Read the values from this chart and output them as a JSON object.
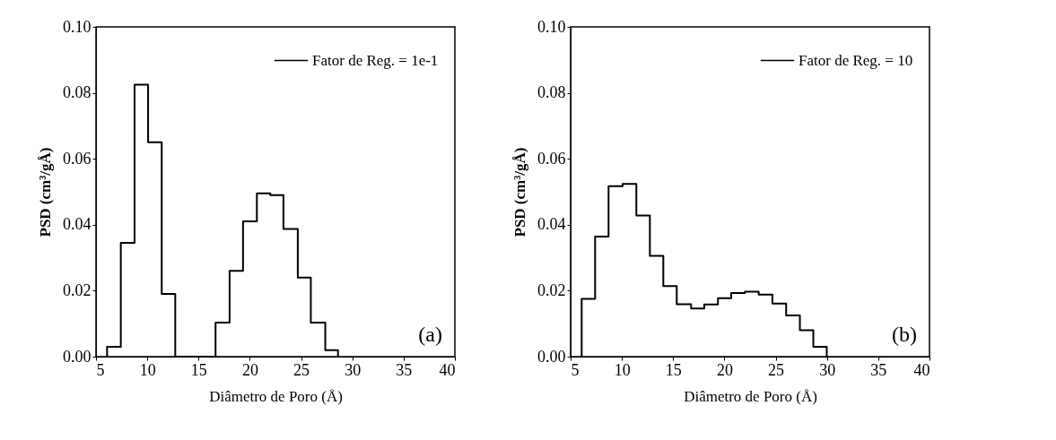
{
  "chart_data": [
    {
      "type": "histogram",
      "xlabel": "Diâmetro de Poro (Å)",
      "ylabel": "PSD (cm³/gÅ)",
      "bins": [
        6.08,
        7.42,
        8.76,
        10.08,
        11.41,
        12.73,
        14.05,
        15.36,
        16.66,
        18.03,
        19.34,
        20.69,
        22.0,
        23.28,
        24.68,
        25.95,
        27.36,
        28.6
      ],
      "series": [
        {
          "name": "Fator de Reg. = 1e-1",
          "color": "#000000",
          "values": [
            0.003,
            0.0345,
            0.0825,
            0.065,
            0.019,
            0,
            0,
            0,
            0.0103,
            0.026,
            0.041,
            0.0495,
            0.049,
            0.0387,
            0.024,
            0.0103,
            0.002
          ]
        }
      ],
      "xlim": [
        5,
        40
      ],
      "xticks": [
        5,
        10,
        15,
        20,
        25,
        30,
        35,
        40
      ],
      "ylim": [
        0,
        0.1
      ],
      "yticks": [
        {
          "value": 0,
          "label": "0.00"
        },
        {
          "value": 0.02,
          "label": "0.02"
        },
        {
          "value": 0.04,
          "label": "0.04"
        },
        {
          "value": 0.06,
          "label": "0.06"
        },
        {
          "value": 0.08,
          "label": "0.08"
        },
        {
          "value": 0.1,
          "label": "0.10"
        }
      ],
      "legend": "top right",
      "annotations": [
        "(a)"
      ]
    },
    {
      "type": "histogram",
      "xlabel": "Diâmetro de Poro (Å)",
      "ylabel": "PSD (cm³/gÅ)",
      "bins": [
        6.08,
        7.39,
        8.7,
        10.07,
        11.41,
        12.73,
        14.04,
        15.35,
        16.75,
        18.03,
        19.37,
        20.66,
        22.0,
        23.34,
        24.68,
        26.02,
        27.36,
        28.67,
        29.98
      ],
      "series": [
        {
          "name": "Fator de Reg. = 10",
          "color": "#000000",
          "values": [
            0.0175,
            0.0364,
            0.0517,
            0.0524,
            0.0428,
            0.0306,
            0.0214,
            0.0159,
            0.0146,
            0.0158,
            0.0177,
            0.0193,
            0.0197,
            0.0188,
            0.0161,
            0.0125,
            0.008,
            0.003
          ]
        }
      ],
      "xlim": [
        5,
        40
      ],
      "xticks": [
        5,
        10,
        15,
        20,
        25,
        30,
        35,
        40
      ],
      "ylim": [
        0,
        0.1
      ],
      "yticks": [
        {
          "value": 0,
          "label": "0.00"
        },
        {
          "value": 0.02,
          "label": "0.02"
        },
        {
          "value": 0.04,
          "label": "0.04"
        },
        {
          "value": 0.06,
          "label": "0.06"
        },
        {
          "value": 0.08,
          "label": "0.08"
        },
        {
          "value": 0.1,
          "label": "0.10"
        }
      ],
      "legend": "top right",
      "annotations": [
        "(b)"
      ]
    }
  ]
}
